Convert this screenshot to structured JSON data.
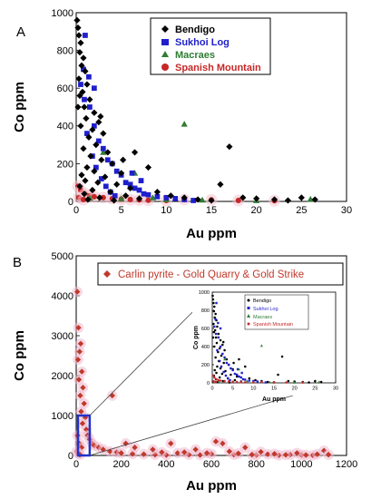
{
  "panels": [
    {
      "letter": "A",
      "chart_data": {
        "type": "scatter",
        "xlabel": "Au ppm",
        "ylabel": "Co ppm",
        "xlim": [
          0,
          30
        ],
        "ylim": [
          0,
          1000
        ],
        "xticks": [
          0,
          5,
          10,
          15,
          20,
          25,
          30
        ],
        "yticks": [
          0,
          200,
          400,
          600,
          800,
          1000
        ],
        "grid": false,
        "legend_position": "top-right",
        "series": [
          {
            "name": "Bendigo",
            "color": "#000000",
            "marker": "diamond",
            "points": [
              [
                0.1,
                960
              ],
              [
                0.2,
                920
              ],
              [
                0.3,
                880
              ],
              [
                0.5,
                840
              ],
              [
                0.4,
                790
              ],
              [
                0.8,
                760
              ],
              [
                0.6,
                720
              ],
              [
                1.0,
                690
              ],
              [
                0.3,
                650
              ],
              [
                1.2,
                620
              ],
              [
                0.7,
                580
              ],
              [
                1.5,
                540
              ],
              [
                0.9,
                500
              ],
              [
                2.0,
                470
              ],
              [
                1.1,
                440
              ],
              [
                2.5,
                420
              ],
              [
                0.5,
                400
              ],
              [
                1.8,
                380
              ],
              [
                3.0,
                360
              ],
              [
                1.4,
                340
              ],
              [
                2.2,
                300
              ],
              [
                0.8,
                280
              ],
              [
                3.5,
                260
              ],
              [
                1.6,
                240
              ],
              [
                2.8,
                220
              ],
              [
                4.0,
                200
              ],
              [
                1.2,
                180
              ],
              [
                2.0,
                160
              ],
              [
                5.0,
                150
              ],
              [
                0.6,
                140
              ],
              [
                3.2,
                130
              ],
              [
                1.0,
                110
              ],
              [
                2.4,
                100
              ],
              [
                4.5,
                90
              ],
              [
                0.4,
                80
              ],
              [
                6.0,
                70
              ],
              [
                1.8,
                60
              ],
              [
                3.8,
                50
              ],
              [
                0.9,
                40
              ],
              [
                5.5,
                30
              ],
              [
                2.6,
                20
              ],
              [
                7.0,
                15
              ],
              [
                1.3,
                10
              ],
              [
                4.2,
                5
              ],
              [
                0.2,
                500
              ],
              [
                0.4,
                560
              ],
              [
                2.7,
                450
              ],
              [
                5.2,
                220
              ],
              [
                6.5,
                260
              ],
              [
                8.0,
                180
              ],
              [
                9.0,
                50
              ],
              [
                10.5,
                30
              ],
              [
                12.0,
                20
              ],
              [
                13.5,
                10
              ],
              [
                15.0,
                5
              ],
              [
                16.0,
                90
              ],
              [
                17.0,
                290
              ],
              [
                18.5,
                20
              ],
              [
                20.0,
                15
              ],
              [
                22.0,
                10
              ],
              [
                23.5,
                5
              ],
              [
                25.0,
                20
              ],
              [
                26.5,
                10
              ]
            ]
          },
          {
            "name": "Sukhoi Log",
            "color": "#1f1fcc",
            "marker": "square",
            "points": [
              [
                0.5,
                620
              ],
              [
                1.0,
                880
              ],
              [
                0.8,
                700
              ],
              [
                1.5,
                500
              ],
              [
                2.0,
                400
              ],
              [
                1.2,
                360
              ],
              [
                2.5,
                320
              ],
              [
                3.0,
                280
              ],
              [
                1.8,
                240
              ],
              [
                3.5,
                220
              ],
              [
                4.0,
                200
              ],
              [
                2.2,
                180
              ],
              [
                4.5,
                160
              ],
              [
                5.0,
                140
              ],
              [
                2.8,
                120
              ],
              [
                5.5,
                100
              ],
              [
                6.0,
                90
              ],
              [
                3.3,
                80
              ],
              [
                6.5,
                70
              ],
              [
                7.0,
                60
              ],
              [
                3.8,
                50
              ],
              [
                7.5,
                40
              ],
              [
                8.0,
                35
              ],
              [
                4.3,
                30
              ],
              [
                9.0,
                25
              ],
              [
                10.0,
                20
              ],
              [
                11.0,
                15
              ],
              [
                12.0,
                10
              ],
              [
                13.0,
                5
              ],
              [
                6.2,
                150
              ],
              [
                7.2,
                110
              ],
              [
                2.0,
                600
              ],
              [
                1.4,
                660
              ],
              [
                0.9,
                540
              ]
            ]
          },
          {
            "name": "Macraes",
            "color": "#2e7d32",
            "marker": "triangle",
            "points": [
              [
                12.0,
                410
              ],
              [
                3.0,
                260
              ],
              [
                6.5,
                150
              ],
              [
                8.5,
                20
              ],
              [
                10.0,
                10
              ],
              [
                5.0,
                15
              ],
              [
                14.0,
                8
              ],
              [
                20.0,
                5
              ],
              [
                26.0,
                12
              ],
              [
                1.5,
                18
              ]
            ]
          },
          {
            "name": "Spanish Mountain",
            "color": "#c62828",
            "marker": "circle",
            "points": [
              [
                0.2,
                80
              ],
              [
                0.5,
                60
              ],
              [
                1.0,
                40
              ],
              [
                1.5,
                30
              ],
              [
                2.0,
                25
              ],
              [
                3.0,
                20
              ],
              [
                4.0,
                15
              ],
              [
                5.0,
                12
              ],
              [
                6.0,
                10
              ],
              [
                7.0,
                8
              ],
              [
                8.0,
                6
              ],
              [
                10.0,
                5
              ],
              [
                12.0,
                10
              ],
              [
                15.0,
                8
              ],
              [
                18.0,
                5
              ],
              [
                22.0,
                4
              ],
              [
                0.3,
                20
              ],
              [
                0.8,
                10
              ]
            ]
          }
        ]
      }
    },
    {
      "letter": "B",
      "chart_data": {
        "type": "scatter",
        "xlabel": "Au ppm",
        "ylabel": "Co ppm",
        "xlim": [
          0,
          1200
        ],
        "ylim": [
          0,
          5000
        ],
        "xticks": [
          0,
          200,
          400,
          600,
          800,
          1000,
          1200
        ],
        "yticks": [
          0,
          1000,
          2000,
          3000,
          4000,
          5000
        ],
        "grid": false,
        "legend_position": "top",
        "series": [
          {
            "name": "Carlin pyrite - Gold Quarry & Gold Strike",
            "color": "#c0392b",
            "marker": "diamond",
            "points": [
              [
                5,
                4100
              ],
              [
                10,
                3200
              ],
              [
                20,
                2800
              ],
              [
                15,
                2600
              ],
              [
                8,
                2400
              ],
              [
                25,
                2100
              ],
              [
                12,
                1900
              ],
              [
                30,
                1700
              ],
              [
                18,
                1500
              ],
              [
                35,
                1300
              ],
              [
                22,
                1100
              ],
              [
                40,
                950
              ],
              [
                28,
                800
              ],
              [
                45,
                650
              ],
              [
                50,
                500
              ],
              [
                60,
                400
              ],
              [
                70,
                300
              ],
              [
                80,
                250
              ],
              [
                100,
                200
              ],
              [
                120,
                150
              ],
              [
                150,
                100
              ],
              [
                180,
                80
              ],
              [
                200,
                60
              ],
              [
                250,
                40
              ],
              [
                300,
                30
              ],
              [
                350,
                20
              ],
              [
                400,
                10
              ],
              [
                450,
                60
              ],
              [
                500,
                20
              ],
              [
                550,
                10
              ],
              [
                600,
                40
              ],
              [
                650,
                300
              ],
              [
                700,
                20
              ],
              [
                750,
                200
              ],
              [
                800,
                10
              ],
              [
                850,
                30
              ],
              [
                900,
                5
              ],
              [
                950,
                20
              ],
              [
                1000,
                10
              ],
              [
                1050,
                5
              ],
              [
                1100,
                120
              ],
              [
                1120,
                20
              ],
              [
                160,
                1500
              ],
              [
                220,
                300
              ],
              [
                260,
                200
              ],
              [
                340,
                150
              ],
              [
                380,
                80
              ],
              [
                420,
                300
              ],
              [
                480,
                80
              ],
              [
                530,
                150
              ],
              [
                580,
                60
              ],
              [
                620,
                350
              ],
              [
                680,
                100
              ],
              [
                720,
                50
              ],
              [
                780,
                20
              ],
              [
                820,
                90
              ],
              [
                880,
                40
              ],
              [
                930,
                15
              ],
              [
                980,
                60
              ],
              [
                1020,
                10
              ],
              [
                1070,
                30
              ],
              [
                6,
                500
              ],
              [
                14,
                300
              ],
              [
                24,
                200
              ],
              [
                3,
                100
              ],
              [
                9,
                50
              ],
              [
                16,
                20
              ]
            ]
          }
        ],
        "highlight_box": {
          "x": [
            0,
            60
          ],
          "y": [
            0,
            1000
          ]
        }
      },
      "inset": {
        "xlabel": "Au ppm",
        "ylabel": "Co ppm",
        "xlim": [
          0,
          30
        ],
        "ylim": [
          0,
          1000
        ],
        "xticks": [
          0,
          5,
          10,
          15,
          20,
          25,
          30
        ],
        "yticks": [
          0,
          200,
          400,
          600,
          800,
          1000
        ],
        "legend": [
          "Bendigo",
          "Sukhoi Log",
          "Macraes",
          "Spanish Mountain"
        ]
      }
    }
  ]
}
